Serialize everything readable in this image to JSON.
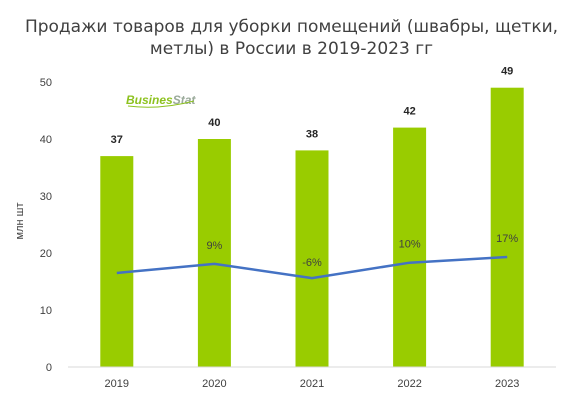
{
  "chart_data": {
    "type": "bar",
    "title": "Продажи товаров для уборки помещений (швабры, щетки, метлы) в России в 2019-2023 гг",
    "title_lines": [
      "Продажи товаров для уборки помещений (швабры, щетки,",
      "метлы) в России в 2019-2023 гг"
    ],
    "ylabel": "млн шт",
    "ylim": [
      0,
      50
    ],
    "yticks": [
      "0",
      "10",
      "20",
      "30",
      "40",
      "50"
    ],
    "categories": [
      "2019",
      "2020",
      "2021",
      "2022",
      "2023"
    ],
    "values": [
      37,
      40,
      38,
      42,
      49
    ],
    "value_labels": [
      "37",
      "40",
      "38",
      "42",
      "49"
    ],
    "growth": {
      "type": "line",
      "labels": [
        "",
        "9%",
        "-6%",
        "10%",
        "17%"
      ]
    },
    "grid": false,
    "legend": "none",
    "colors": {
      "bar": "#99cc00",
      "line": "#4472c4",
      "axis": "#d9d9d9"
    },
    "logo": {
      "part1": "Busines",
      "part2": "Stat"
    }
  }
}
